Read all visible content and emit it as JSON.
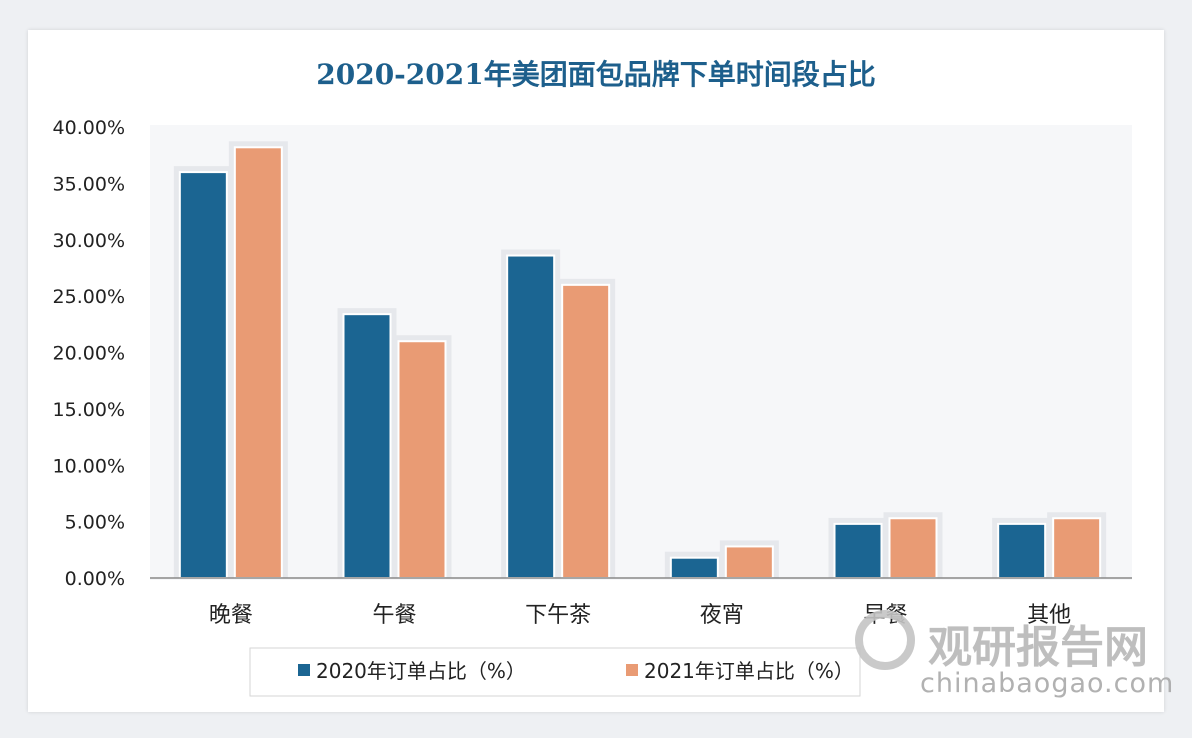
{
  "chart_data": {
    "type": "bar",
    "title": "2020-2021年美团面包品牌下单时间段占比",
    "categories": [
      "晚餐",
      "午餐",
      "下午茶",
      "夜宵",
      "早餐",
      "其他"
    ],
    "series": [
      {
        "name": "2020年订单占比（%）",
        "color": "#1b6592",
        "values": [
          36.0,
          23.4,
          28.6,
          1.8,
          4.8,
          4.8
        ]
      },
      {
        "name": "2021年订单占比（%）",
        "color": "#e99b74",
        "values": [
          38.2,
          21.0,
          26.0,
          2.8,
          5.3,
          5.3
        ]
      }
    ],
    "yticks": [
      "0.00%",
      "5.00%",
      "10.00%",
      "15.00%",
      "20.00%",
      "25.00%",
      "30.00%",
      "35.00%",
      "40.00%"
    ],
    "ylim": [
      0,
      40
    ],
    "xlabel": "",
    "ylabel": "",
    "legend": "bottom",
    "grid": false
  },
  "watermark": {
    "name": "观研报告网",
    "url": "chinabaogao.com"
  }
}
